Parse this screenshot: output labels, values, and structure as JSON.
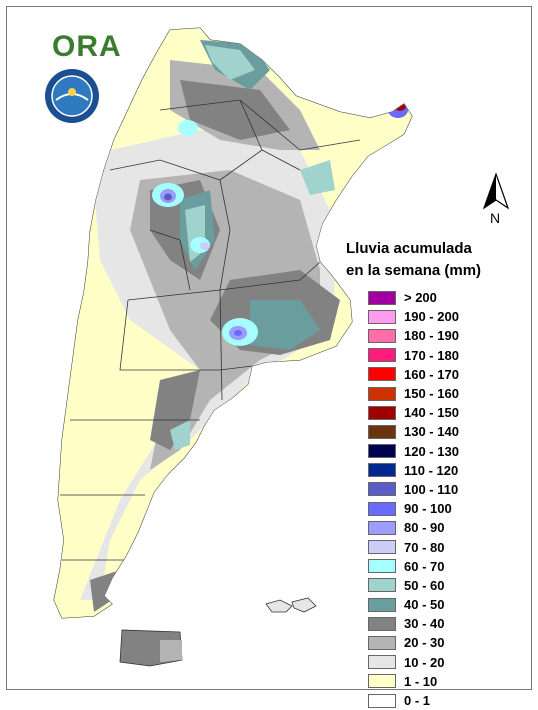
{
  "header": {
    "logo_text": "ORA",
    "seal_icon": "seal-icon"
  },
  "compass": {
    "label": "N",
    "icon": "north-arrow-icon"
  },
  "legend": {
    "title_line1": "Lluvia acumulada",
    "title_line2": "en la semana (mm)",
    "items": [
      {
        "label": "> 200",
        "color": "#a000a0"
      },
      {
        "label": "190 - 200",
        "color": "#ff9cf0"
      },
      {
        "label": "180 - 190",
        "color": "#ff6ea6"
      },
      {
        "label": "170 - 180",
        "color": "#ff1c7c"
      },
      {
        "label": "160 - 170",
        "color": "#ff0000"
      },
      {
        "label": "150 - 160",
        "color": "#cc3300"
      },
      {
        "label": "140 - 150",
        "color": "#a00000"
      },
      {
        "label": "130 - 140",
        "color": "#6b3410"
      },
      {
        "label": "120 - 130",
        "color": "#000050"
      },
      {
        "label": "110 - 120",
        "color": "#002a90"
      },
      {
        "label": "100 - 110",
        "color": "#5c5cc8"
      },
      {
        "label": "90 - 100",
        "color": "#6a6aff"
      },
      {
        "label": "80 - 90",
        "color": "#9c9cff"
      },
      {
        "label": "70 - 80",
        "color": "#cccef8"
      },
      {
        "label": "60 - 70",
        "color": "#a6ffff"
      },
      {
        "label": "50 - 60",
        "color": "#a0d2ce"
      },
      {
        "label": "40 - 50",
        "color": "#6a9e9e"
      },
      {
        "label": "30 - 40",
        "color": "#828282"
      },
      {
        "label": "20 - 30",
        "color": "#b4b4b4"
      },
      {
        "label": "10 - 20",
        "color": "#e6e6e6"
      },
      {
        "label": "1 - 10",
        "color": "#ffffc8"
      },
      {
        "label": "0 - 1",
        "color": "#ffffff"
      }
    ]
  }
}
